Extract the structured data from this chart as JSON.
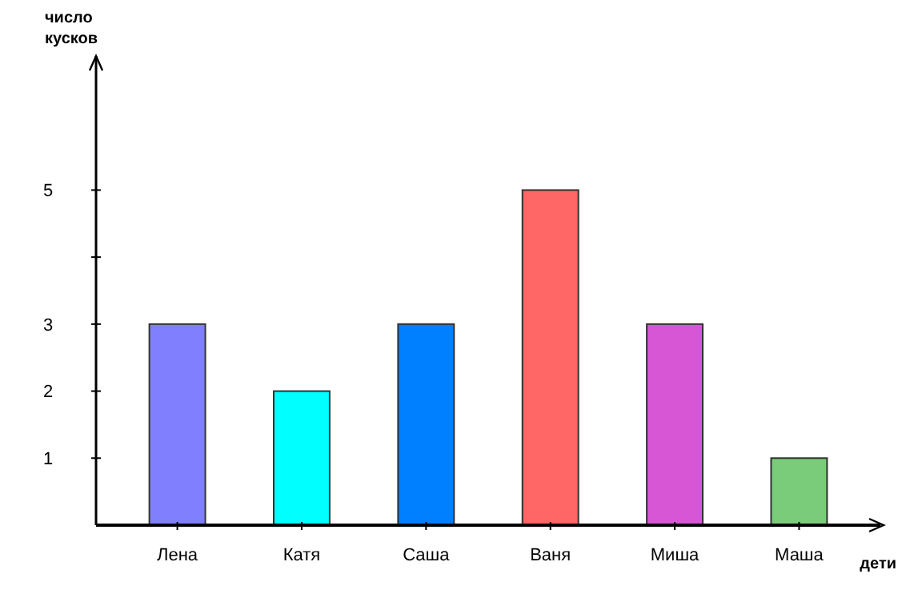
{
  "chart_data": {
    "type": "bar",
    "xlabel": "дети",
    "ylabel": "число\nкусков",
    "categories": [
      "Лена",
      "Катя",
      "Саша",
      "Ваня",
      "Миша",
      "Маша"
    ],
    "values": [
      3,
      2,
      3,
      5,
      3,
      1
    ],
    "colors": [
      "#8080ff",
      "#00ffff",
      "#0080ff",
      "#ff6666",
      "#d656d6",
      "#7acc7a"
    ],
    "ylim": [
      0,
      7
    ],
    "yticks": [
      1,
      2,
      3,
      {
        "value": 4,
        "label": null
      },
      5
    ],
    "grid": false
  }
}
